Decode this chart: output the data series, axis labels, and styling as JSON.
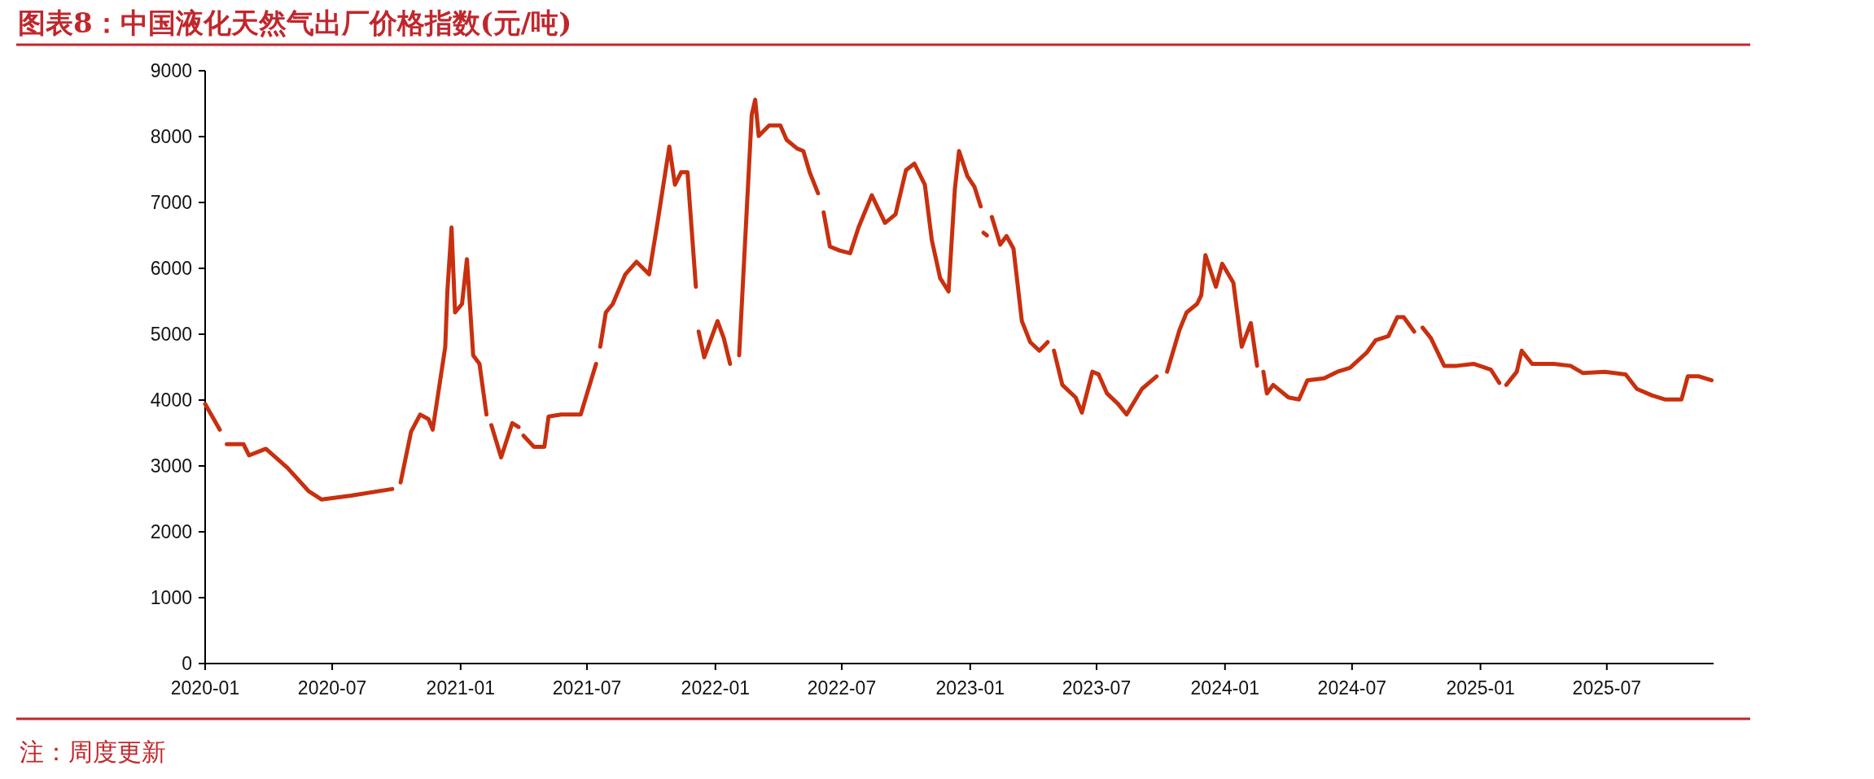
{
  "chart_data": {
    "type": "line",
    "title": "图表8：中国液化天然气出厂价格指数(元/吨)",
    "annotations": [
      "注：周度更新"
    ],
    "series": [
      {
        "color": "#c8300f",
        "x": [
          "2020-01-01",
          "2020-01-22"
        ],
        "values": [
          3940,
          3550
        ]
      },
      {
        "color": "#c8300f",
        "x": [
          "2020-02-01",
          "2020-02-25",
          "2020-03-04",
          "2020-03-28",
          "2020-04-28",
          "2020-05-28",
          "2020-06-16",
          "2020-07-28",
          "2020-09-25"
        ],
        "values": [
          3330,
          3330,
          3160,
          3260,
          2970,
          2620,
          2490,
          2550,
          2650
        ]
      },
      {
        "color": "#c8300f",
        "x": [
          "2020-10-07",
          "2020-10-22",
          "2020-11-04",
          "2020-11-16",
          "2020-11-22",
          "2020-12-10",
          "2020-12-13",
          "2020-12-19",
          "2020-12-24",
          "2021-01-03",
          "2021-01-10",
          "2021-01-19",
          "2021-01-28",
          "2021-02-07"
        ],
        "values": [
          2750,
          3520,
          3780,
          3710,
          3550,
          4810,
          5650,
          6620,
          5330,
          5460,
          6140,
          4680,
          4550,
          3780
        ]
      },
      {
        "color": "#c8300f",
        "x": [
          "2021-02-14",
          "2021-02-28",
          "2021-03-16",
          "2021-03-25"
        ],
        "values": [
          3620,
          3130,
          3650,
          3590
        ]
      },
      {
        "color": "#c8300f",
        "x": [
          "2021-04-01",
          "2021-04-16",
          "2021-05-01",
          "2021-05-07",
          "2021-05-25",
          "2021-06-22",
          "2021-07-14"
        ],
        "values": [
          3460,
          3290,
          3290,
          3750,
          3780,
          3780,
          4550
        ]
      },
      {
        "color": "#c8300f",
        "x": [
          "2021-07-20",
          "2021-07-28",
          "2021-08-07",
          "2021-08-25",
          "2021-09-10",
          "2021-09-28",
          "2021-10-10",
          "2021-10-27",
          "2021-11-04",
          "2021-11-13",
          "2021-11-22",
          "2021-12-04"
        ],
        "values": [
          4810,
          5330,
          5460,
          5910,
          6100,
          5910,
          6690,
          7850,
          7270,
          7460,
          7460,
          5720
        ]
      },
      {
        "color": "#c8300f",
        "x": [
          "2021-12-08",
          "2021-12-16",
          "2021-12-25",
          "2022-01-04",
          "2022-01-13",
          "2022-01-22"
        ],
        "values": [
          5040,
          4650,
          4910,
          5200,
          4940,
          4550
        ]
      },
      {
        "color": "#c8300f",
        "x": [
          "2022-02-04",
          "2022-02-22",
          "2022-02-27",
          "2022-03-04",
          "2022-03-19",
          "2022-04-04",
          "2022-04-13",
          "2022-04-28",
          "2022-05-07",
          "2022-05-16",
          "2022-05-28"
        ],
        "values": [
          4680,
          8330,
          8560,
          8010,
          8170,
          8170,
          7950,
          7820,
          7780,
          7460,
          7140
        ]
      },
      {
        "color": "#c8300f",
        "x": [
          "2022-06-05",
          "2022-06-14",
          "2022-06-28",
          "2022-07-13",
          "2022-07-25",
          "2022-08-13",
          "2022-09-01",
          "2022-09-16",
          "2022-10-01",
          "2022-10-13",
          "2022-10-28",
          "2022-11-07",
          "2022-11-19",
          "2022-12-01",
          "2022-12-10",
          "2022-12-16",
          "2022-12-28",
          "2023-01-07",
          "2023-01-16"
        ],
        "values": [
          6850,
          6330,
          6270,
          6230,
          6620,
          7110,
          6690,
          6820,
          7490,
          7590,
          7270,
          6430,
          5850,
          5650,
          7200,
          7780,
          7400,
          7240,
          6940
        ]
      },
      {
        "color": "#c8300f",
        "x": [
          "2023-01-20",
          "2023-01-25"
        ],
        "values": [
          6540,
          6500
        ]
      },
      {
        "color": "#c8300f",
        "x": [
          "2023-02-01",
          "2023-02-13",
          "2023-02-22",
          "2023-03-04",
          "2023-03-16",
          "2023-03-28",
          "2023-04-10",
          "2023-04-22"
        ],
        "values": [
          6780,
          6360,
          6490,
          6300,
          5200,
          4880,
          4750,
          4880
        ]
      },
      {
        "color": "#c8300f",
        "x": [
          "2023-05-01",
          "2023-05-13",
          "2023-06-01",
          "2023-06-10",
          "2023-06-25",
          "2023-07-04",
          "2023-07-16",
          "2023-08-01",
          "2023-08-13",
          "2023-09-04",
          "2023-09-25"
        ],
        "values": [
          4750,
          4230,
          4040,
          3810,
          4430,
          4390,
          4100,
          3940,
          3780,
          4170,
          4360
        ]
      },
      {
        "color": "#c8300f",
        "x": [
          "2023-10-10",
          "2023-10-28",
          "2023-11-07",
          "2023-11-22",
          "2023-11-28",
          "2023-12-04",
          "2023-12-19",
          "2023-12-28",
          "2024-01-13",
          "2024-01-25",
          "2024-02-07",
          "2024-02-16"
        ],
        "values": [
          4430,
          5070,
          5330,
          5460,
          5590,
          6200,
          5720,
          6070,
          5780,
          4810,
          5170,
          4520
        ]
      },
      {
        "color": "#c8300f",
        "x": [
          "2024-02-25",
          "2024-03-01",
          "2024-03-10",
          "2024-04-01",
          "2024-04-16",
          "2024-04-28",
          "2024-05-22",
          "2024-06-10",
          "2024-06-28",
          "2024-07-22",
          "2024-08-04",
          "2024-08-22",
          "2024-09-04",
          "2024-09-13",
          "2024-09-28"
        ],
        "values": [
          4430,
          4100,
          4230,
          4040,
          4010,
          4300,
          4330,
          4430,
          4490,
          4720,
          4910,
          4970,
          5260,
          5260,
          5040
        ]
      },
      {
        "color": "#c8300f",
        "x": [
          "2024-10-10",
          "2024-10-22",
          "2024-11-10",
          "2024-11-28",
          "2024-12-22",
          "2025-01-16",
          "2025-01-28"
        ],
        "values": [
          5100,
          4940,
          4520,
          4520,
          4550,
          4460,
          4260
        ]
      },
      {
        "color": "#c8300f",
        "x": [
          "2025-02-07",
          "2025-02-22",
          "2025-03-01",
          "2025-03-16",
          "2025-04-16",
          "2025-05-10",
          "2025-05-28",
          "2025-06-28",
          "2025-07-28",
          "2025-08-13",
          "2025-09-04",
          "2025-09-22",
          "2025-10-16",
          "2025-10-25",
          "2025-11-10",
          "2025-11-28"
        ],
        "values": [
          4230,
          4430,
          4750,
          4550,
          4550,
          4520,
          4410,
          4430,
          4390,
          4170,
          4070,
          4010,
          4010,
          4360,
          4360,
          4300
        ]
      }
    ],
    "xlim": [
      "2020-01-01",
      "2025-12-01"
    ],
    "xticks": [
      {
        "value": "2020-01-01",
        "label": "2020-01"
      },
      {
        "value": "2020-07-01",
        "label": "2020-07"
      },
      {
        "value": "2021-01-01",
        "label": "2021-01"
      },
      {
        "value": "2021-07-01",
        "label": "2021-07"
      },
      {
        "value": "2022-01-01",
        "label": "2022-01"
      },
      {
        "value": "2022-07-01",
        "label": "2022-07"
      },
      {
        "value": "2023-01-01",
        "label": "2023-01"
      },
      {
        "value": "2023-07-01",
        "label": "2023-07"
      },
      {
        "value": "2024-01-01",
        "label": "2024-01"
      },
      {
        "value": "2024-07-01",
        "label": "2024-07"
      },
      {
        "value": "2025-01-01",
        "label": "2025-01"
      },
      {
        "value": "2025-07-01",
        "label": "2025-07"
      }
    ],
    "ylim": [
      0,
      9000
    ],
    "yticks": [
      0,
      1000,
      2000,
      3000,
      4000,
      5000,
      6000,
      7000,
      8000,
      9000
    ],
    "grid": false,
    "marker": "none",
    "line_style": "solid"
  }
}
